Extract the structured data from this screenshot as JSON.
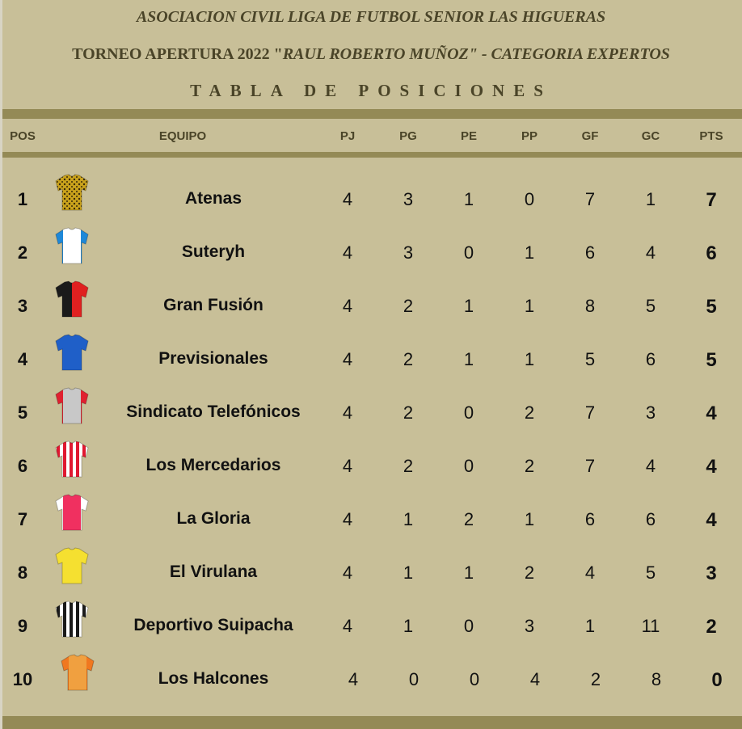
{
  "header": {
    "line1": "ASOCIACION CIVIL LIGA DE FUTBOL SENIOR LAS HIGUERAS",
    "line2_prefix": "TORNEO APERTURA 2022 \"",
    "line2_italic": "RAUL ROBERTO MUÑOZ\" - CATEGORIA EXPERTOS",
    "title": "TABLA DE POSICIONES"
  },
  "columns": [
    "POS",
    "EQUIPO",
    "PJ",
    "PG",
    "PE",
    "PP",
    "GF",
    "GC",
    "PTS"
  ],
  "colors": {
    "background": "#c8bf98",
    "bar": "#948a56",
    "header_text": "#4a4428"
  },
  "rows": [
    {
      "pos": "1",
      "team": "Atenas",
      "pj": "4",
      "pg": "3",
      "pe": "1",
      "pp": "0",
      "gf": "7",
      "gc": "1",
      "pts": "7",
      "shirt": {
        "icon": "shirt-icon",
        "pattern": "spotted",
        "c1": "#c9a21c",
        "c2": "#3a2a08"
      }
    },
    {
      "pos": "2",
      "team": "Suteryh",
      "pj": "4",
      "pg": "3",
      "pe": "0",
      "pp": "1",
      "gf": "6",
      "gc": "4",
      "pts": "6",
      "shirt": {
        "icon": "shirt-icon",
        "pattern": "sides",
        "c1": "#ffffff",
        "c2": "#1e88d8"
      }
    },
    {
      "pos": "3",
      "team": "Gran Fusión",
      "pj": "4",
      "pg": "2",
      "pe": "1",
      "pp": "1",
      "gf": "8",
      "gc": "5",
      "pts": "5",
      "shirt": {
        "icon": "shirt-icon",
        "pattern": "quarters",
        "c1": "#e02020",
        "c2": "#1a1a1a"
      }
    },
    {
      "pos": "4",
      "team": "Previsionales",
      "pj": "4",
      "pg": "2",
      "pe": "1",
      "pp": "1",
      "gf": "5",
      "gc": "6",
      "pts": "5",
      "shirt": {
        "icon": "shirt-icon",
        "pattern": "solid",
        "c1": "#1f5fc8",
        "c2": "#1f5fc8"
      }
    },
    {
      "pos": "5",
      "team": "Sindicato Telefónicos",
      "pj": "4",
      "pg": "2",
      "pe": "0",
      "pp": "2",
      "gf": "7",
      "gc": "3",
      "pts": "4",
      "shirt": {
        "icon": "shirt-icon",
        "pattern": "sides",
        "c1": "#c8c8c8",
        "c2": "#e02030"
      }
    },
    {
      "pos": "6",
      "team": "Los Mercedarios",
      "pj": "4",
      "pg": "2",
      "pe": "0",
      "pp": "2",
      "gf": "7",
      "gc": "4",
      "pts": "4",
      "shirt": {
        "icon": "shirt-icon",
        "pattern": "stripes",
        "c1": "#ffffff",
        "c2": "#e01830"
      }
    },
    {
      "pos": "7",
      "team": "La Gloria",
      "pj": "4",
      "pg": "1",
      "pe": "2",
      "pp": "1",
      "gf": "6",
      "gc": "6",
      "pts": "4",
      "shirt": {
        "icon": "shirt-icon",
        "pattern": "sides",
        "c1": "#f03060",
        "c2": "#ffffff"
      }
    },
    {
      "pos": "8",
      "team": "El Virulana",
      "pj": "4",
      "pg": "1",
      "pe": "1",
      "pp": "2",
      "gf": "4",
      "gc": "5",
      "pts": "3",
      "shirt": {
        "icon": "shirt-icon",
        "pattern": "solid",
        "c1": "#f5e030",
        "c2": "#f5e030"
      }
    },
    {
      "pos": "9",
      "team": "Deportivo Suipacha",
      "pj": "4",
      "pg": "1",
      "pe": "0",
      "pp": "3",
      "gf": "1",
      "gc": "11",
      "pts": "2",
      "shirt": {
        "icon": "shirt-icon",
        "pattern": "stripes",
        "c1": "#ffffff",
        "c2": "#1a1a1a"
      }
    },
    {
      "pos": "10",
      "team": "Los Halcones",
      "pj": "4",
      "pg": "0",
      "pe": "0",
      "pp": "4",
      "gf": "2",
      "gc": "8",
      "pts": "0",
      "shirt": {
        "icon": "shirt-icon",
        "pattern": "sides",
        "c1": "#f0a040",
        "c2": "#f07820"
      }
    }
  ]
}
